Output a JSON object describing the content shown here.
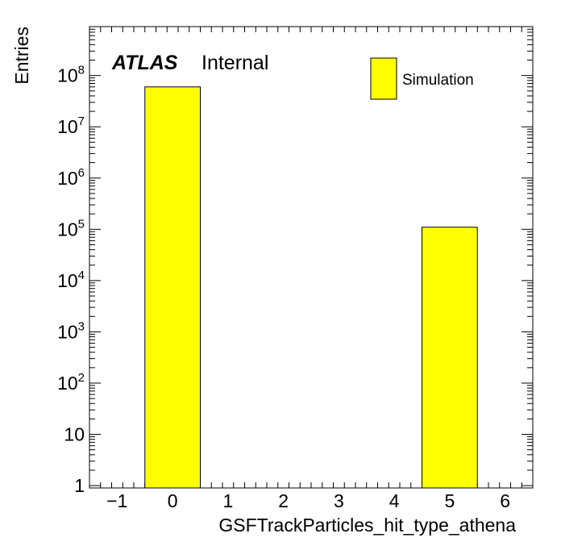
{
  "chart_data": {
    "type": "bar",
    "xlabel": "GSFTrackParticles_hit_type_athena",
    "ylabel": "Entries",
    "xlim": [
      -1.5,
      6.5
    ],
    "ylim": [
      0.9,
      900000000
    ],
    "yscale": "log",
    "grid": false,
    "legend_position": "top-right",
    "x_ticks": [
      "−1",
      "0",
      "1",
      "2",
      "3",
      "4",
      "5",
      "6"
    ],
    "y_ticks": [
      {
        "base": "1",
        "exp": ""
      },
      {
        "base": "10",
        "exp": ""
      },
      {
        "base": "10",
        "exp": "2"
      },
      {
        "base": "10",
        "exp": "3"
      },
      {
        "base": "10",
        "exp": "4"
      },
      {
        "base": "10",
        "exp": "5"
      },
      {
        "base": "10",
        "exp": "6"
      },
      {
        "base": "10",
        "exp": "7"
      },
      {
        "base": "10",
        "exp": "8"
      }
    ],
    "series": [
      {
        "name": "Simulation",
        "color": "#ffff00",
        "bins": [
          {
            "low": -0.5,
            "high": 0.5,
            "value": 60000000
          },
          {
            "low": 4.5,
            "high": 5.5,
            "value": 110000
          }
        ]
      }
    ],
    "annotation": {
      "atlas": "ATLAS",
      "status": "Internal"
    }
  }
}
